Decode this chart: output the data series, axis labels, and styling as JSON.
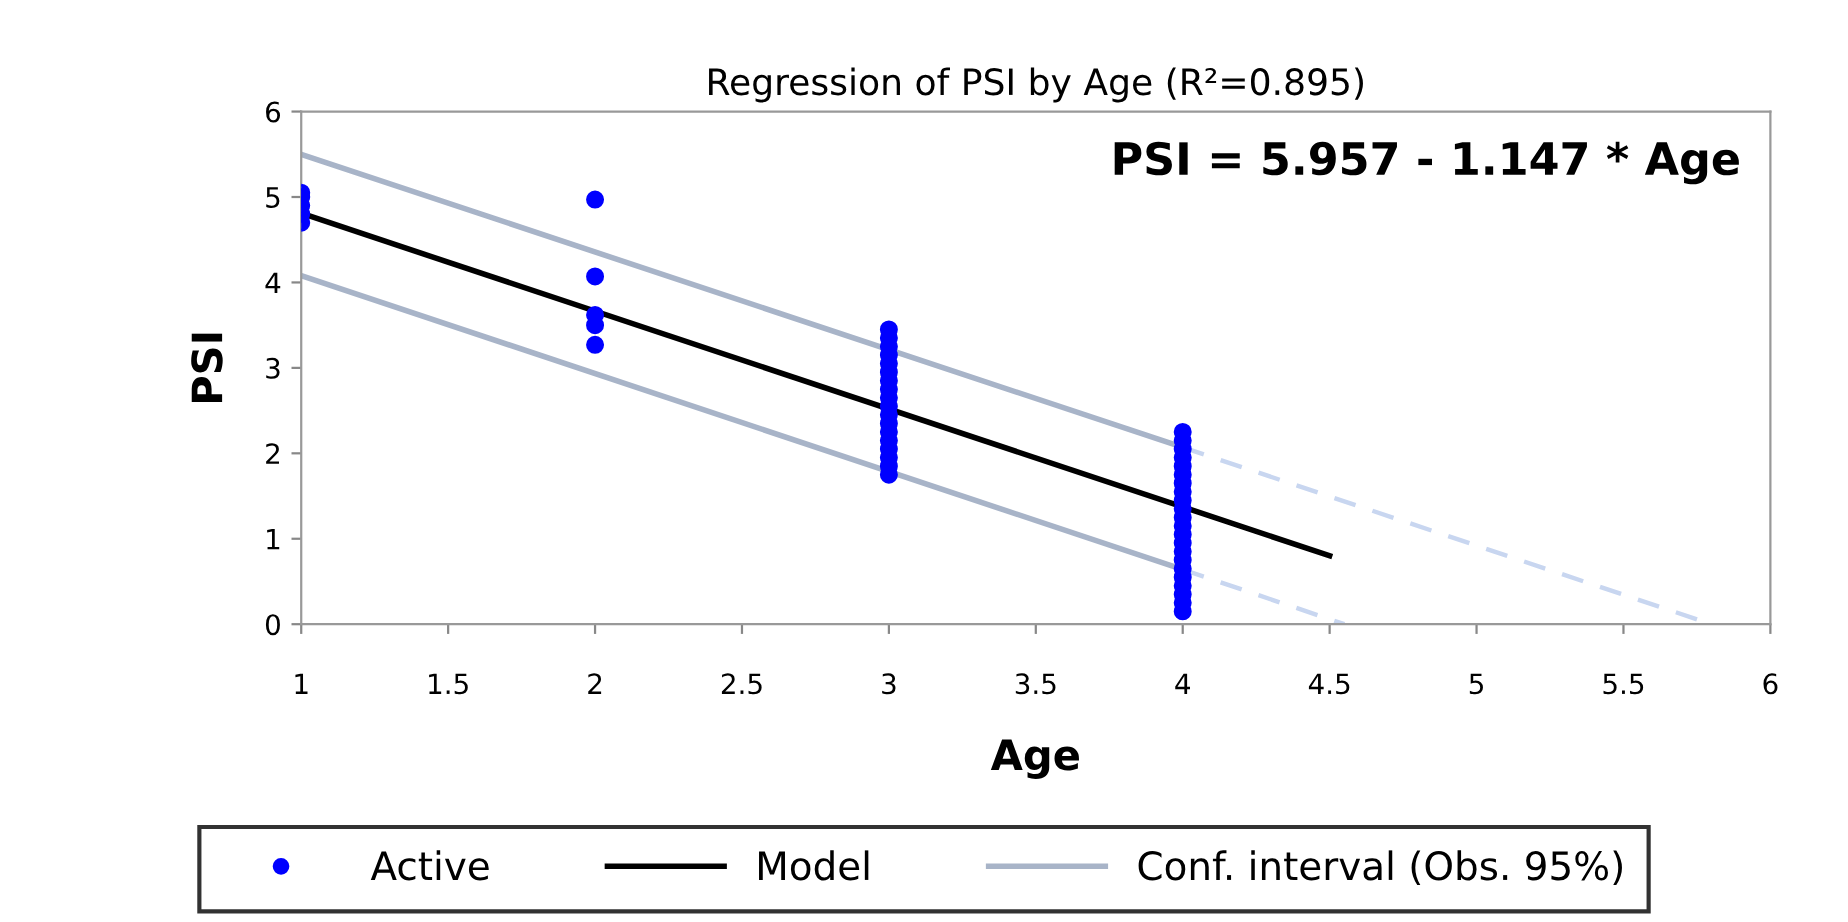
{
  "chart_data": {
    "type": "scatter",
    "title": "Regression of PSI by Age (R²=0.895)",
    "xlabel": "Age",
    "ylabel": "PSI",
    "annotations": [
      "PSI = 5.957 - 1.147 * Age"
    ],
    "xlim": [
      1,
      6
    ],
    "xticks": [
      1,
      1.5,
      2,
      2.5,
      3,
      3.5,
      4,
      4.5,
      5,
      5.5,
      6
    ],
    "ylim": [
      0,
      6
    ],
    "yticks": [
      0,
      1,
      2,
      3,
      4,
      5,
      6
    ],
    "grid": false,
    "legend": "bottom",
    "marker": "circle",
    "series": [
      {
        "name": "Active",
        "color": "#0000ff",
        "x": [
          1,
          1,
          1,
          1,
          1,
          2,
          2,
          2,
          2,
          2,
          3,
          3,
          3,
          3,
          3,
          3,
          3,
          3,
          3,
          3,
          3,
          3,
          3,
          3,
          3,
          3,
          3,
          3,
          4,
          4,
          4,
          4,
          4,
          4,
          4,
          4,
          4,
          4,
          4,
          4,
          4,
          4,
          4,
          4,
          4,
          4,
          4,
          4,
          4,
          4
        ],
        "values": [
          4.7,
          4.8,
          4.9,
          5.0,
          5.05,
          4.97,
          4.07,
          3.62,
          3.5,
          3.27,
          1.75,
          1.85,
          1.95,
          2.05,
          2.15,
          2.25,
          2.35,
          2.45,
          2.55,
          2.65,
          2.75,
          2.85,
          2.95,
          3.05,
          3.15,
          3.25,
          3.35,
          3.45,
          0.15,
          0.25,
          0.35,
          0.45,
          0.55,
          0.65,
          0.75,
          0.85,
          0.95,
          1.05,
          1.15,
          1.25,
          1.35,
          1.45,
          1.55,
          1.65,
          1.75,
          1.85,
          1.95,
          2.05,
          2.15,
          2.25
        ]
      },
      {
        "name": "Model",
        "type": "line",
        "color": "#000000",
        "line_style": "solid",
        "marker": "none",
        "x": [
          1,
          4.5
        ],
        "values": [
          4.81,
          0.8
        ]
      },
      {
        "name": "Conf. interval (Obs. 95%)",
        "type": "line",
        "color": "#a8b4c8",
        "line_style": "solid",
        "marker": "none",
        "x": [
          1,
          4
        ],
        "values": [
          5.5,
          2.07
        ]
      },
      {
        "type": "line",
        "color": "#a8b4c8",
        "line_style": "solid",
        "marker": "none",
        "x": [
          1,
          4
        ],
        "values": [
          4.08,
          0.64
        ]
      },
      {
        "type": "line",
        "color": "#c8d6f0",
        "line_style": "dashed",
        "marker": "none",
        "x": [
          4,
          5.8
        ],
        "values": [
          2.07,
          0
        ]
      },
      {
        "type": "line",
        "color": "#c8d6f0",
        "line_style": "dashed",
        "marker": "none",
        "x": [
          4,
          4.55
        ],
        "values": [
          0.64,
          0
        ]
      }
    ]
  }
}
